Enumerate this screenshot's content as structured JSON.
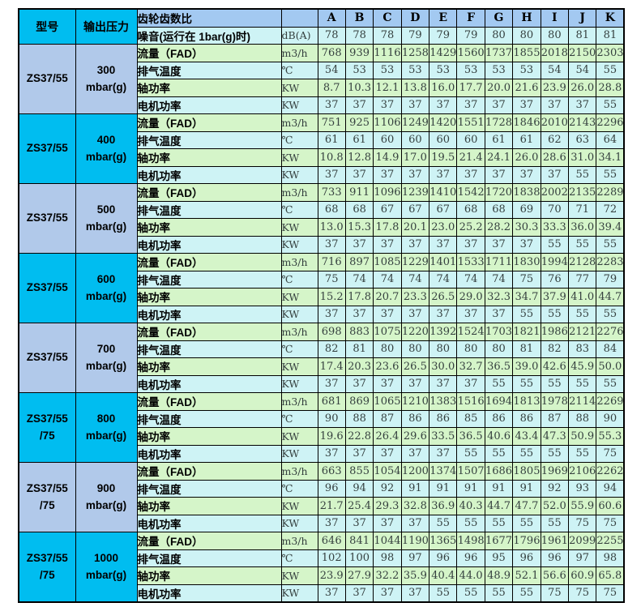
{
  "header": {
    "model_label": "型号",
    "pressure_label": "输出压力",
    "gear_ratio_label": "齿轮齿数比",
    "noise_label": "噪音(运行在 1bar(g)时)",
    "noise_unit": "dB(A)",
    "columns": [
      "A",
      "B",
      "C",
      "D",
      "E",
      "F",
      "G",
      "H",
      "I",
      "J",
      "K"
    ],
    "noise_values": [
      "78",
      "78",
      "78",
      "79",
      "79",
      "79",
      "80",
      "80",
      "80",
      "81",
      "81"
    ]
  },
  "row_labels": {
    "flow": "流量（FAD）",
    "flow_unit": "m3/h",
    "temp": "排气温度",
    "temp_unit": "℃",
    "shaft_power": "轴功率",
    "motor_power": "电机功率",
    "power_unit": "KW"
  },
  "groups": [
    {
      "model_line1": "ZS37/55",
      "model_line2": "",
      "pressure": "300",
      "pressure_unit": "mbar(g)",
      "flow": [
        "768",
        "939",
        "1116",
        "1258",
        "1429",
        "1560",
        "1737",
        "1855",
        "2018",
        "2150",
        "2303"
      ],
      "temp": [
        "54",
        "53",
        "53",
        "53",
        "53",
        "53",
        "53",
        "53",
        "54",
        "54",
        "55"
      ],
      "shaft_power": [
        "8.7",
        "10.3",
        "12.1",
        "13.8",
        "16.0",
        "17.7",
        "20.0",
        "21.6",
        "23.9",
        "26.0",
        "28.8"
      ],
      "motor_power": [
        "37",
        "37",
        "37",
        "37",
        "37",
        "37",
        "37",
        "37",
        "37",
        "37",
        "55"
      ]
    },
    {
      "model_line1": "ZS37/55",
      "model_line2": "",
      "pressure": "400",
      "pressure_unit": "mbar(g)",
      "flow": [
        "751",
        "925",
        "1106",
        "1249",
        "1420",
        "1551",
        "1728",
        "1846",
        "2010",
        "2143",
        "2296"
      ],
      "temp": [
        "61",
        "61",
        "60",
        "60",
        "60",
        "60",
        "61",
        "61",
        "62",
        "63",
        "64"
      ],
      "shaft_power": [
        "10.8",
        "12.8",
        "14.9",
        "17.0",
        "19.5",
        "21.4",
        "24.1",
        "26.0",
        "28.6",
        "31.0",
        "34.1"
      ],
      "motor_power": [
        "37",
        "37",
        "37",
        "37",
        "37",
        "37",
        "37",
        "37",
        "37",
        "55",
        "55"
      ]
    },
    {
      "model_line1": "ZS37/55",
      "model_line2": "",
      "pressure": "500",
      "pressure_unit": "mbar(g)",
      "flow": [
        "733",
        "911",
        "1096",
        "1239",
        "1410",
        "1542",
        "1720",
        "1838",
        "2002",
        "2135",
        "2289"
      ],
      "temp": [
        "68",
        "68",
        "67",
        "67",
        "67",
        "68",
        "68",
        "69",
        "70",
        "71",
        "72"
      ],
      "shaft_power": [
        "13.0",
        "15.3",
        "17.8",
        "20.1",
        "23.0",
        "25.2",
        "28.2",
        "30.3",
        "33.3",
        "36.0",
        "39.4"
      ],
      "motor_power": [
        "37",
        "37",
        "37",
        "37",
        "37",
        "37",
        "37",
        "37",
        "55",
        "55",
        "55"
      ]
    },
    {
      "model_line1": "ZS37/55",
      "model_line2": "",
      "pressure": "600",
      "pressure_unit": "mbar(g)",
      "flow": [
        "716",
        "897",
        "1085",
        "1229",
        "1401",
        "1533",
        "1711",
        "1830",
        "1994",
        "2128",
        "2283"
      ],
      "temp": [
        "75",
        "74",
        "74",
        "74",
        "74",
        "74",
        "74",
        "75",
        "76",
        "77",
        "79"
      ],
      "shaft_power": [
        "15.2",
        "17.8",
        "20.7",
        "23.3",
        "26.5",
        "29.0",
        "32.3",
        "34.7",
        "37.9",
        "41.0",
        "44.7"
      ],
      "motor_power": [
        "37",
        "37",
        "37",
        "37",
        "37",
        "37",
        "37",
        "55",
        "55",
        "55",
        "55"
      ]
    },
    {
      "model_line1": "ZS37/55",
      "model_line2": "",
      "pressure": "700",
      "pressure_unit": "mbar(g)",
      "flow": [
        "698",
        "883",
        "1075",
        "1220",
        "1392",
        "1524",
        "1703",
        "1821",
        "1986",
        "2121",
        "2276"
      ],
      "temp": [
        "82",
        "81",
        "80",
        "80",
        "80",
        "80",
        "80",
        "81",
        "82",
        "83",
        "84"
      ],
      "shaft_power": [
        "17.4",
        "20.3",
        "23.6",
        "26.5",
        "30.0",
        "32.7",
        "36.5",
        "39.0",
        "42.6",
        "45.9",
        "50.0"
      ],
      "motor_power": [
        "37",
        "37",
        "37",
        "37",
        "37",
        "37",
        "55",
        "55",
        "55",
        "55",
        "55"
      ]
    },
    {
      "model_line1": "ZS37/55",
      "model_line2": "/75",
      "pressure": "800",
      "pressure_unit": "mbar(g)",
      "flow": [
        "681",
        "869",
        "1065",
        "1210",
        "1383",
        "1516",
        "1694",
        "1813",
        "1978",
        "2114",
        "2269"
      ],
      "temp": [
        "90",
        "88",
        "87",
        "86",
        "86",
        "85",
        "86",
        "86",
        "87",
        "88",
        "90"
      ],
      "shaft_power": [
        "19.6",
        "22.8",
        "26.4",
        "29.6",
        "33.5",
        "36.5",
        "40.6",
        "43.4",
        "47.3",
        "50.9",
        "55.3"
      ],
      "motor_power": [
        "37",
        "37",
        "37",
        "37",
        "37",
        "55",
        "55",
        "55",
        "55",
        "55",
        "75"
      ]
    },
    {
      "model_line1": "ZS37/55",
      "model_line2": "/75",
      "pressure": "900",
      "pressure_unit": "mbar(g)",
      "flow": [
        "663",
        "855",
        "1054",
        "1200",
        "1374",
        "1507",
        "1686",
        "1805",
        "1969",
        "2106",
        "2262"
      ],
      "temp": [
        "96",
        "94",
        "92",
        "91",
        "91",
        "91",
        "91",
        "91",
        "92",
        "93",
        "94"
      ],
      "shaft_power": [
        "21.7",
        "25.4",
        "29.3",
        "32.8",
        "36.9",
        "40.3",
        "44.7",
        "47.7",
        "52.0",
        "55.9",
        "60.6"
      ],
      "motor_power": [
        "37",
        "37",
        "37",
        "37",
        "55",
        "55",
        "55",
        "55",
        "55",
        "75",
        "75"
      ]
    },
    {
      "model_line1": "ZS37/55",
      "model_line2": "/75",
      "pressure": "1000",
      "pressure_unit": "mbar(g)",
      "flow": [
        "646",
        "841",
        "1044",
        "1190",
        "1365",
        "1498",
        "1677",
        "1796",
        "1961",
        "2099",
        "2255"
      ],
      "temp": [
        "102",
        "100",
        "98",
        "97",
        "96",
        "96",
        "95",
        "96",
        "96",
        "97",
        "98"
      ],
      "shaft_power": [
        "23.9",
        "27.9",
        "32.2",
        "35.9",
        "40.4",
        "44.0",
        "48.9",
        "52.1",
        "56.6",
        "60.9",
        "65.8"
      ],
      "motor_power": [
        "37",
        "37",
        "37",
        "37",
        "55",
        "55",
        "55",
        "55",
        "75",
        "75",
        "75"
      ]
    }
  ],
  "colors": {
    "model_header_bg": "#00bdf0",
    "group_alt_bg": "#b1c9ea",
    "column_header_bg": "#a3c9f1",
    "flow_row_bg": "#d5f5c9",
    "temp_row_bg": "#cef3f5",
    "border": "#000000"
  }
}
